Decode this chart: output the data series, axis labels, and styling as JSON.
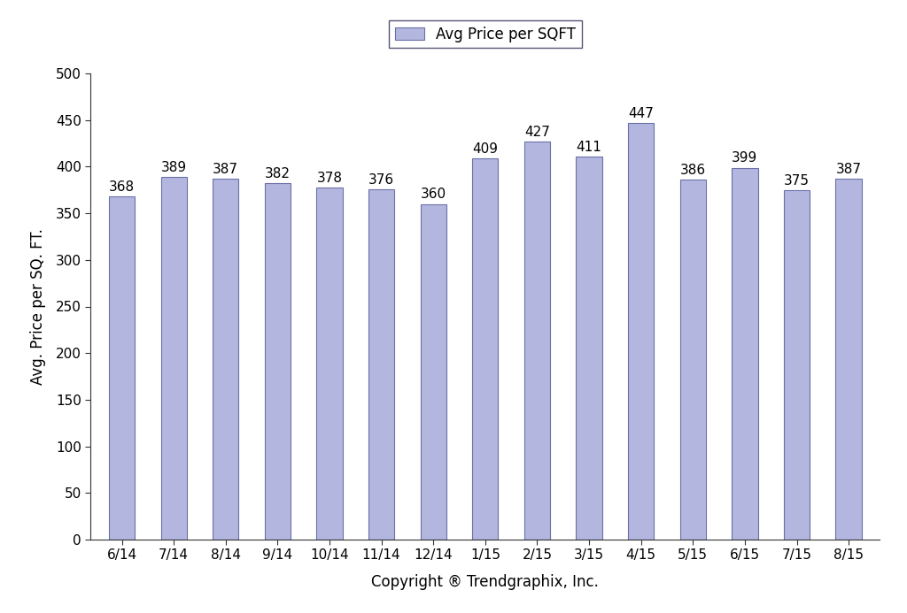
{
  "categories": [
    "6/14",
    "7/14",
    "8/14",
    "9/14",
    "10/14",
    "11/14",
    "12/14",
    "1/15",
    "2/15",
    "3/15",
    "4/15",
    "5/15",
    "6/15",
    "7/15",
    "8/15"
  ],
  "values": [
    368,
    389,
    387,
    382,
    378,
    376,
    360,
    409,
    427,
    411,
    447,
    386,
    399,
    375,
    387
  ],
  "bar_color": "#b3b7e0",
  "bar_edgecolor": "#6b6fa8",
  "ylabel": "Avg. Price per SQ. FT.",
  "xlabel": "Copyright ® Trendgraphix, Inc.",
  "legend_label": "Avg Price per SQFT",
  "ylim": [
    0,
    500
  ],
  "yticks": [
    0,
    50,
    100,
    150,
    200,
    250,
    300,
    350,
    400,
    450,
    500
  ],
  "background_color": "#ffffff",
  "tick_label_fontsize": 11,
  "axis_label_fontsize": 12,
  "legend_fontsize": 12,
  "value_fontsize": 11,
  "bar_width": 0.5
}
